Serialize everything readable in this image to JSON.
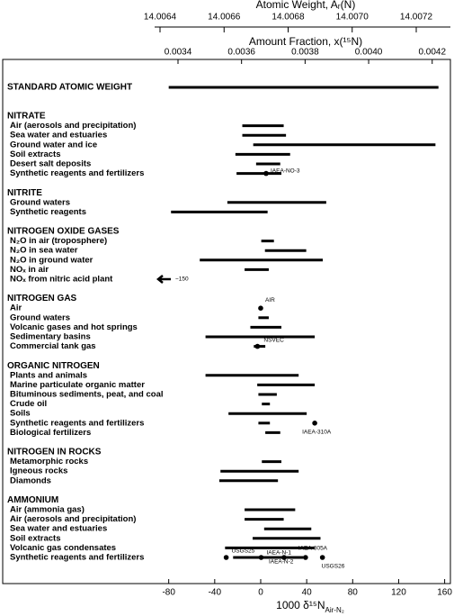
{
  "chart_data": {
    "type": "range",
    "xlabel": {
      "main": "1000 δ¹⁵N",
      "sub": "Air-N₂"
    },
    "xlim": [
      -86,
      165
    ],
    "xticks": [
      -80,
      -40,
      0,
      40,
      80,
      120,
      160
    ],
    "top_axes": [
      {
        "title": "Atomic Weight, Aᵣ(N)",
        "lim": [
          14.0064056,
          14.0073067
        ],
        "ticks": [
          14.0064,
          14.0066,
          14.0068,
          {
            "value": 14.007,
            "label": "14.0070"
          },
          14.0072
        ]
      },
      {
        "title": "Amount Fraction, x(¹⁵N)",
        "lim": [
          0.0033491,
          0.0042573
        ],
        "ticks": [
          0.0034,
          0.0036,
          0.0038,
          {
            "value": 0.004,
            "label": "0.0040"
          },
          0.0042
        ]
      }
    ],
    "standard": {
      "label": "STANDARD ATOMIC WEIGHT",
      "range": [
        -80,
        154.6
      ]
    },
    "groups": [
      {
        "name": "NITRATE",
        "items": [
          {
            "label": "Air (aerosols and precipitation)",
            "range": [
              -16,
              20
            ]
          },
          {
            "label": "Sea water and estuaries",
            "range": [
              -16,
              22
            ]
          },
          {
            "label": "Ground water and ice",
            "range": [
              -6.5,
              152
            ]
          },
          {
            "label": "Soil extracts",
            "range": [
              -22,
              25.6
            ]
          },
          {
            "label": "Desert salt deposits",
            "range": [
              -4,
              17
            ]
          },
          {
            "label": "Synthetic reagents and fertilizers",
            "range": [
              -21,
              18
            ],
            "points": [
              {
                "value": 4.7,
                "label": "IAEA-NO-3"
              }
            ]
          }
        ]
      },
      {
        "name": "NITRITE",
        "items": [
          {
            "label": "Ground waters",
            "range": [
              -29,
              57
            ]
          },
          {
            "label": "Synthetic reagents",
            "range": [
              -78,
              6
            ]
          }
        ]
      },
      {
        "name": "NITROGEN OXIDE GASES",
        "items": [
          {
            "label": "N₂O in air (troposphere)",
            "range": [
              0.5,
              11.5
            ]
          },
          {
            "label": "N₂O in sea water",
            "range": [
              3.7,
              39.6
            ]
          },
          {
            "label": "N₂O in ground water",
            "range": [
              -53,
              54
            ]
          },
          {
            "label": "NOₓ in air",
            "range": [
              -14,
              7
            ]
          },
          {
            "label": "NOₓ from nitric acid plant",
            "arrow": {
              "value": -150,
              "label": "−150"
            }
          }
        ]
      },
      {
        "name": "NITROGEN GAS",
        "items": [
          {
            "label": "Air",
            "points": [
              {
                "value": 0,
                "label": "AIR"
              }
            ]
          },
          {
            "label": "Ground waters",
            "range": [
              -2,
              7
            ]
          },
          {
            "label": "Volcanic gases and hot springs",
            "range": [
              -9,
              18
            ]
          },
          {
            "label": "Sedimentary basins",
            "range": [
              -48,
              47
            ]
          },
          {
            "label": "Commercial tank gas",
            "range": [
              -6,
              4
            ],
            "points": [
              {
                "value": -2.8,
                "label": "NSVEC"
              }
            ]
          }
        ]
      },
      {
        "name": "ORGANIC NITROGEN",
        "items": [
          {
            "label": "Plants and animals",
            "range": [
              -48,
              33
            ]
          },
          {
            "label": "Marine particulate organic matter",
            "range": [
              -3,
              47
            ]
          },
          {
            "label": "Bituminous sediments, peat, and coal",
            "range": [
              -2,
              14
            ]
          },
          {
            "label": "Crude oil",
            "range": [
              1,
              8
            ]
          },
          {
            "label": "Soils",
            "range": [
              -28,
              40
            ]
          },
          {
            "label": "Synthetic reagents and fertilizers",
            "range": [
              -2,
              8
            ],
            "points": [
              {
                "value": 47,
                "label": "IAEA-310A"
              }
            ]
          },
          {
            "label": "Biological fertilizers",
            "range": [
              4,
              17
            ]
          }
        ]
      },
      {
        "name": "NITROGEN IN ROCKS",
        "items": [
          {
            "label": "Metamorphic rocks",
            "range": [
              1,
              18
            ]
          },
          {
            "label": "Igneous rocks",
            "range": [
              -35,
              33
            ]
          },
          {
            "label": "Diamonds",
            "range": [
              -36,
              15
            ]
          }
        ]
      },
      {
        "name": "AMMONIUM",
        "items": [
          {
            "label": "Air (ammonia gas)",
            "range": [
              -14,
              30
            ]
          },
          {
            "label": "Air (aerosols and precipitation)",
            "range": [
              -14,
              20
            ]
          },
          {
            "label": "Sea water and estuaries",
            "range": [
              3,
              44
            ]
          },
          {
            "label": "Soil extracts",
            "range": [
              -7,
              52
            ]
          },
          {
            "label": "Volcanic gas condensates",
            "range": [
              -31,
              47
            ]
          },
          {
            "label": "Synthetic reagents and fertilizers",
            "range": [
              -24,
              37
            ],
            "points": [
              {
                "value": -30,
                "label": "USGS25"
              },
              {
                "value": 0.4,
                "label": "IAEA-N-1"
              },
              {
                "value": 20.3,
                "label": "IAEA-N-2"
              },
              {
                "value": 39,
                "label": "IAEA-305A"
              },
              {
                "value": 53.7,
                "label": "USGS26"
              }
            ]
          }
        ]
      }
    ]
  }
}
